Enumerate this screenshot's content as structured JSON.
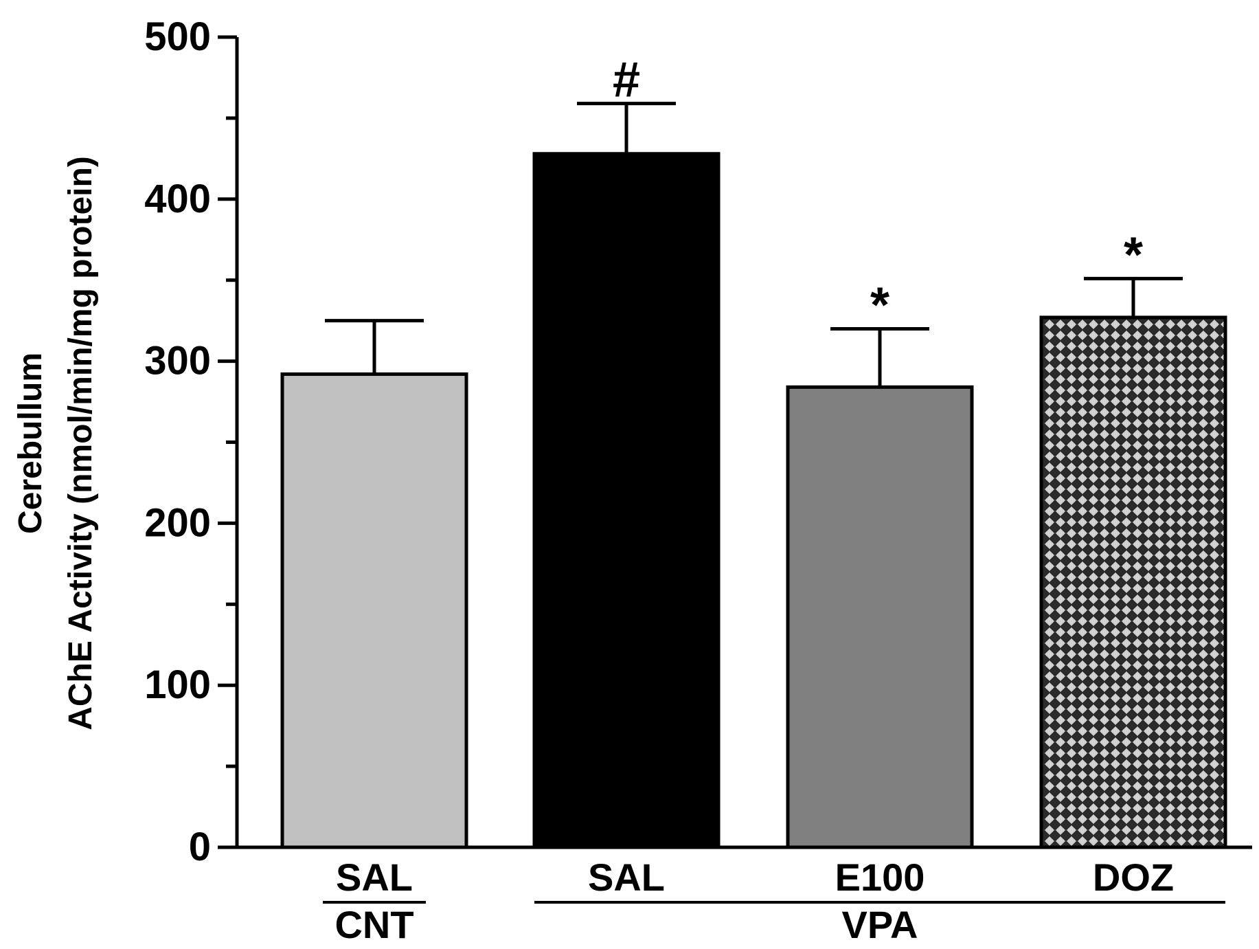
{
  "chart_data": {
    "type": "bar",
    "title": "",
    "ylabel_line1": "Cerebullum",
    "ylabel_line2": "AChE Activity (nmol/min/mg protein)",
    "xlabel": "",
    "ylim": [
      0,
      500
    ],
    "yticks": [
      0,
      100,
      200,
      300,
      400,
      500
    ],
    "yminor_step": 50,
    "categories": [
      "SAL",
      "SAL",
      "E100",
      "DOZ"
    ],
    "values": [
      292,
      428,
      284,
      327
    ],
    "errors": [
      33,
      31,
      36,
      24
    ],
    "significance": [
      "",
      "#",
      "*",
      "*"
    ],
    "fills": [
      "#c0c0c0",
      "#000000",
      "#808080",
      "pattern-diamond"
    ],
    "groups": [
      {
        "label": "CNT",
        "members": [
          0
        ]
      },
      {
        "label": "VPA",
        "members": [
          1,
          2,
          3
        ]
      }
    ],
    "grid": false,
    "legend": "none"
  }
}
